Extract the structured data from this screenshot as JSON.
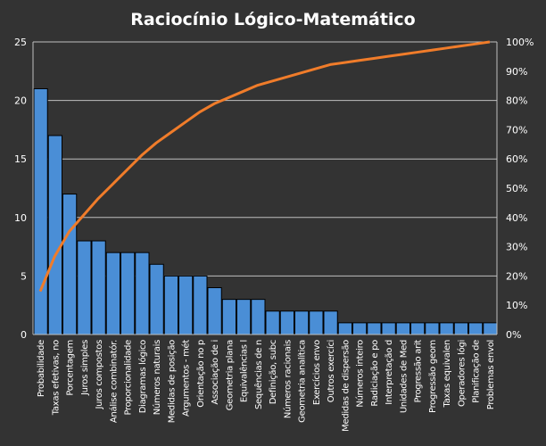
{
  "chart_data": {
    "type": "bar",
    "title": "Raciocínio  Lógico-Matemático",
    "categories": [
      "Probabilidade",
      "Taxas efetivas, no",
      "Porcentagem",
      "Juros simples",
      "Juros compostos",
      "Análise combinatór.",
      "Proporcionalidade",
      "Diagramas lógico",
      "Números naturais",
      "Medidas de posição",
      "Argumentos - mét",
      "Orientação no p",
      "Associação de i",
      "Geometria plana",
      "Equivalências l",
      "Sequências de n",
      "Definição, subc",
      "Números racionais",
      "Geometria analítica",
      "Exercícios envo",
      "Outros exercíci",
      "Medidas de dispersão",
      "Números inteiro",
      "Radiciação e po",
      "Interpretação d",
      "Unidades de Med",
      "Progressão arit",
      "Progressão geom",
      "Taxas equivalen",
      "Operadores lógi",
      "Planificação de",
      "Problemas envol"
    ],
    "series": [
      {
        "type": "bar",
        "axis": "left",
        "values": [
          21,
          17,
          12,
          8,
          8,
          7,
          7,
          7,
          6,
          5,
          5,
          5,
          4,
          3,
          3,
          3,
          2,
          2,
          2,
          2,
          2,
          1,
          1,
          1,
          1,
          1,
          1,
          1,
          1,
          1,
          1,
          1
        ]
      },
      {
        "type": "line",
        "axis": "right",
        "cumulative_percent": true
      }
    ],
    "ylim": [
      0,
      25
    ],
    "yticks": [
      "0",
      "5",
      "10",
      "15",
      "20",
      "25"
    ],
    "y2lim": [
      0,
      100
    ],
    "y2ticks": [
      "0%",
      "10%",
      "20%",
      "30%",
      "40%",
      "50%",
      "60%",
      "70%",
      "80%",
      "90%",
      "100%"
    ],
    "grid": true,
    "colors": {
      "bar": "#4a8ed6",
      "line": "#f07c2a",
      "background": "#333333",
      "grid": "#bfbfbf"
    }
  }
}
